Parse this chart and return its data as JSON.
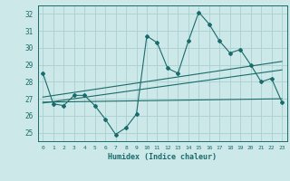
{
  "title": "",
  "xlabel": "Humidex (Indice chaleur)",
  "bg_color": "#cce8e8",
  "grid_color": "#aacfcf",
  "line_color": "#1a6b6b",
  "xlim": [
    -0.5,
    23.5
  ],
  "ylim": [
    24.5,
    32.5
  ],
  "xticks": [
    0,
    1,
    2,
    3,
    4,
    5,
    6,
    7,
    8,
    9,
    10,
    11,
    12,
    13,
    14,
    15,
    16,
    17,
    18,
    19,
    20,
    21,
    22,
    23
  ],
  "yticks": [
    25,
    26,
    27,
    28,
    29,
    30,
    31,
    32
  ],
  "data_x": [
    0,
    1,
    2,
    3,
    4,
    5,
    6,
    7,
    8,
    9,
    10,
    11,
    12,
    13,
    14,
    15,
    16,
    17,
    18,
    19,
    20,
    21,
    22,
    23
  ],
  "data_y": [
    28.5,
    26.7,
    26.6,
    27.2,
    27.2,
    26.6,
    25.8,
    24.9,
    25.3,
    26.1,
    30.7,
    30.3,
    28.8,
    28.5,
    30.4,
    32.1,
    31.4,
    30.4,
    29.7,
    29.9,
    29.0,
    28.0,
    28.2,
    26.8
  ],
  "trend1_x": [
    0,
    23
  ],
  "trend1_y": [
    26.8,
    27.0
  ],
  "trend2_x": [
    0,
    23
  ],
  "trend2_y": [
    26.75,
    28.7
  ],
  "trend3_x": [
    0,
    23
  ],
  "trend3_y": [
    27.1,
    29.2
  ]
}
